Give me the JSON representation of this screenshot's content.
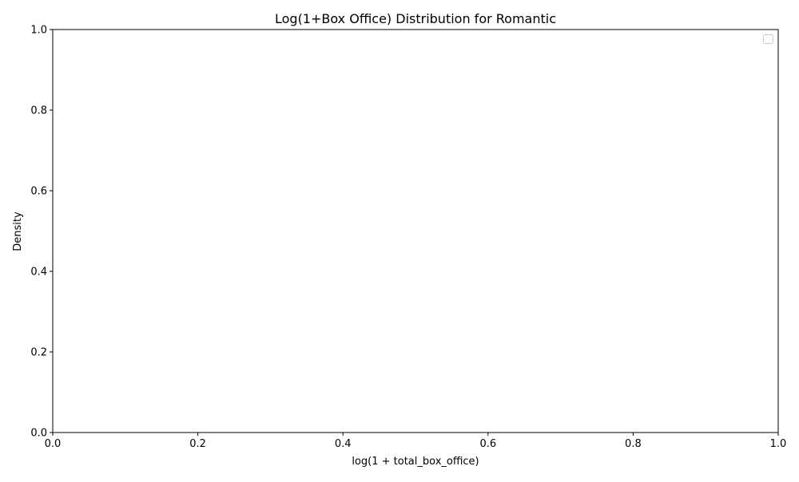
{
  "chart_data": {
    "type": "area",
    "title": "Log(1+Box Office) Distribution for Romantic",
    "xlabel": "log(1 + total_box_office)",
    "ylabel": "Density",
    "xlim": [
      0.0,
      1.0
    ],
    "ylim": [
      0.0,
      1.0
    ],
    "x_ticks": [
      "0.0",
      "0.2",
      "0.4",
      "0.6",
      "0.8",
      "1.0"
    ],
    "y_ticks": [
      "0.0",
      "0.2",
      "0.4",
      "0.6",
      "0.8",
      "1.0"
    ],
    "series": [],
    "legend": {
      "placement": "top-right",
      "entries": []
    },
    "grid": false
  }
}
